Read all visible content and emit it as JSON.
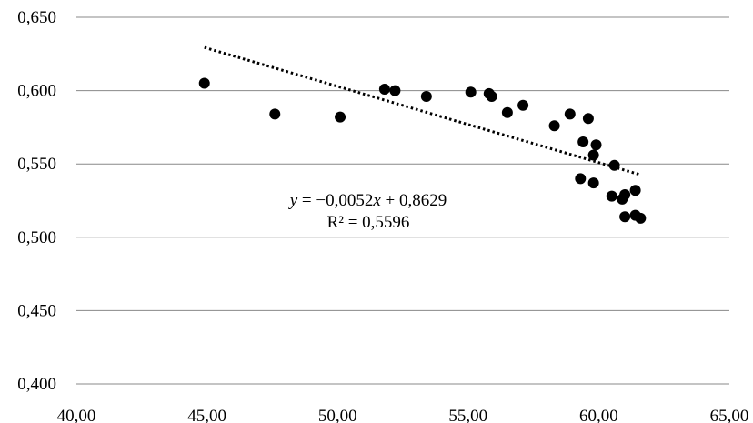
{
  "chart_data": {
    "type": "scatter",
    "title": "",
    "xlabel": "",
    "ylabel": "",
    "xlim": [
      40,
      65
    ],
    "ylim": [
      0.4,
      0.65
    ],
    "x_ticks": [
      "40,00",
      "45,00",
      "50,00",
      "55,00",
      "60,00",
      "65,00"
    ],
    "y_ticks": [
      "0,400",
      "0,450",
      "0,500",
      "0,550",
      "0,600",
      "0,650"
    ],
    "grid": "horizontal",
    "point_color": "#000000",
    "points": [
      {
        "x": 44.9,
        "y": 0.605
      },
      {
        "x": 47.6,
        "y": 0.584
      },
      {
        "x": 50.1,
        "y": 0.582
      },
      {
        "x": 51.8,
        "y": 0.601
      },
      {
        "x": 52.2,
        "y": 0.6
      },
      {
        "x": 53.4,
        "y": 0.596
      },
      {
        "x": 55.1,
        "y": 0.599
      },
      {
        "x": 55.8,
        "y": 0.598
      },
      {
        "x": 55.9,
        "y": 0.596
      },
      {
        "x": 56.5,
        "y": 0.585
      },
      {
        "x": 57.1,
        "y": 0.59
      },
      {
        "x": 58.3,
        "y": 0.576
      },
      {
        "x": 58.9,
        "y": 0.584
      },
      {
        "x": 59.3,
        "y": 0.54
      },
      {
        "x": 59.4,
        "y": 0.565
      },
      {
        "x": 59.6,
        "y": 0.581
      },
      {
        "x": 59.8,
        "y": 0.556
      },
      {
        "x": 59.8,
        "y": 0.537
      },
      {
        "x": 59.9,
        "y": 0.563
      },
      {
        "x": 60.5,
        "y": 0.528
      },
      {
        "x": 60.6,
        "y": 0.549
      },
      {
        "x": 60.9,
        "y": 0.526
      },
      {
        "x": 61.0,
        "y": 0.529
      },
      {
        "x": 61.0,
        "y": 0.514
      },
      {
        "x": 61.4,
        "y": 0.515
      },
      {
        "x": 61.4,
        "y": 0.532
      },
      {
        "x": 61.6,
        "y": 0.513
      }
    ],
    "trendline": {
      "style": "dotted",
      "slope": -0.0052,
      "intercept": 0.8629,
      "x_range": [
        44.9,
        61.6
      ]
    },
    "annotation": {
      "equation": "y = −0,0052x + 0,8629",
      "r_squared": "R² = 0,5596"
    }
  }
}
